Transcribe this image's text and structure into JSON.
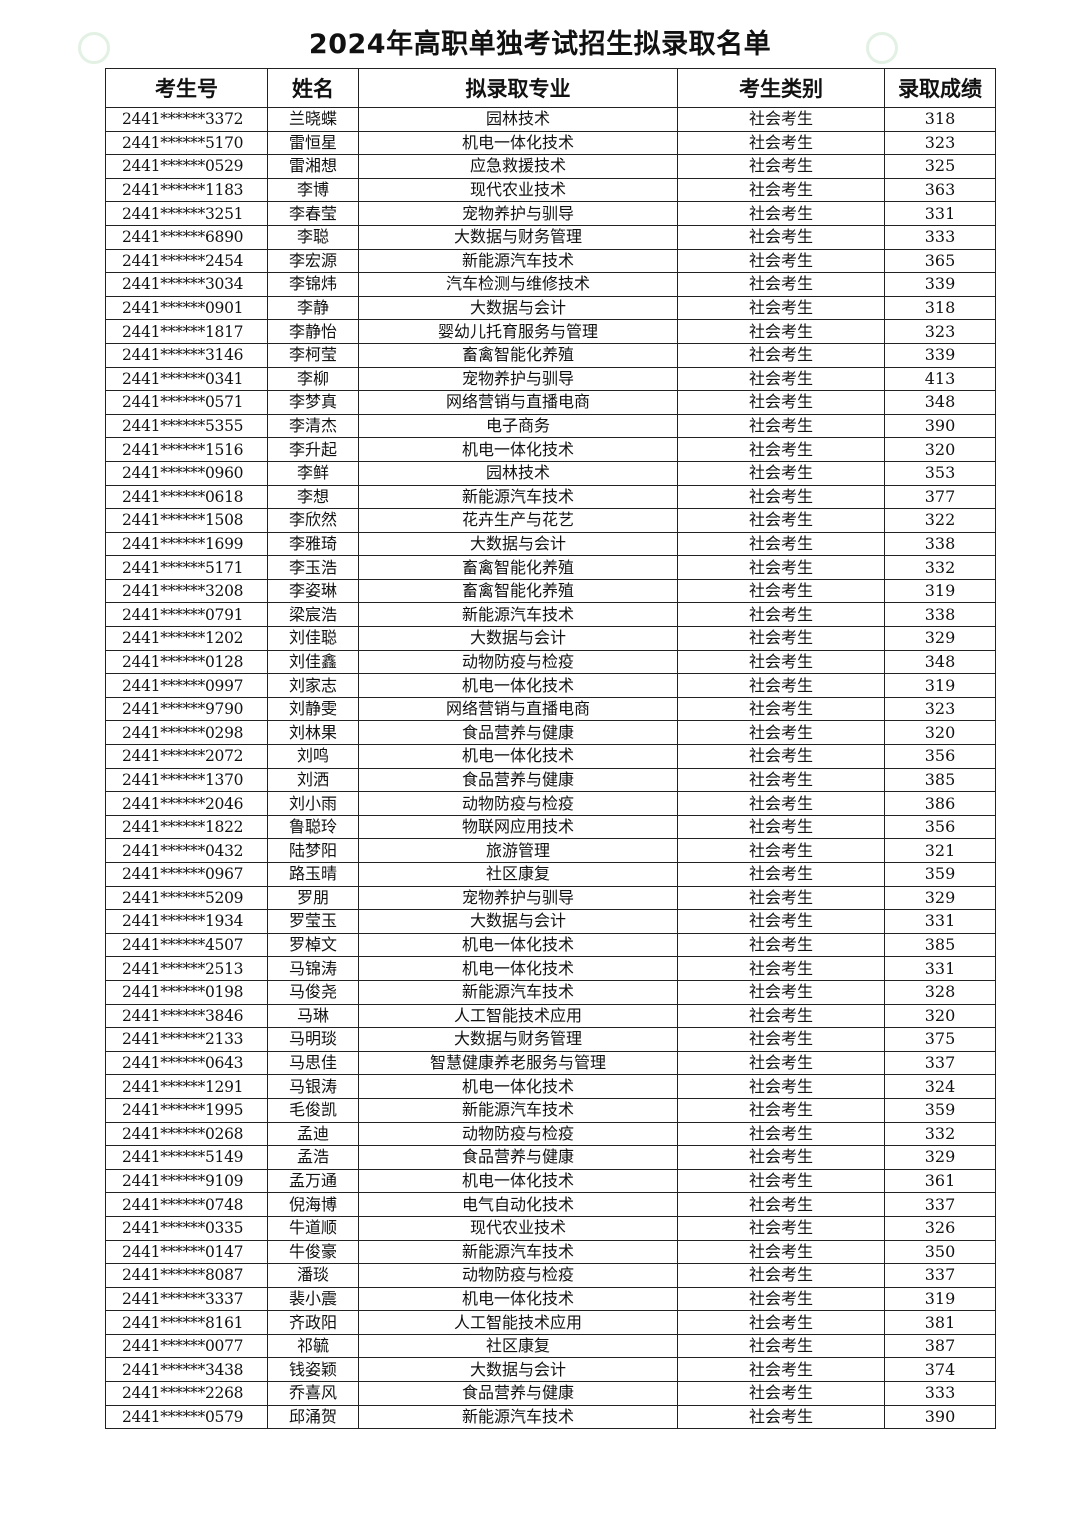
{
  "title": "2024年高职单独考试招生拟录取名单",
  "colors": {
    "border": "#222222",
    "watermark": "#cfe8d2"
  },
  "table": {
    "headers": [
      "考生号",
      "姓名",
      "拟录取专业",
      "考生类别",
      "录取成绩"
    ],
    "rows": [
      [
        "2441******3372",
        "兰晓蝶",
        "园林技术",
        "社会考生",
        "318"
      ],
      [
        "2441******5170",
        "雷恒星",
        "机电一体化技术",
        "社会考生",
        "323"
      ],
      [
        "2441******0529",
        "雷湘想",
        "应急救援技术",
        "社会考生",
        "325"
      ],
      [
        "2441******1183",
        "李博",
        "现代农业技术",
        "社会考生",
        "363"
      ],
      [
        "2441******3251",
        "李春莹",
        "宠物养护与驯导",
        "社会考生",
        "331"
      ],
      [
        "2441******6890",
        "李聪",
        "大数据与财务管理",
        "社会考生",
        "333"
      ],
      [
        "2441******2454",
        "李宏源",
        "新能源汽车技术",
        "社会考生",
        "365"
      ],
      [
        "2441******3034",
        "李锦炜",
        "汽车检测与维修技术",
        "社会考生",
        "339"
      ],
      [
        "2441******0901",
        "李静",
        "大数据与会计",
        "社会考生",
        "318"
      ],
      [
        "2441******1817",
        "李静怡",
        "婴幼儿托育服务与管理",
        "社会考生",
        "323"
      ],
      [
        "2441******3146",
        "李柯莹",
        "畜禽智能化养殖",
        "社会考生",
        "339"
      ],
      [
        "2441******0341",
        "李柳",
        "宠物养护与驯导",
        "社会考生",
        "413"
      ],
      [
        "2441******0571",
        "李梦真",
        "网络营销与直播电商",
        "社会考生",
        "348"
      ],
      [
        "2441******5355",
        "李清杰",
        "电子商务",
        "社会考生",
        "390"
      ],
      [
        "2441******1516",
        "李升起",
        "机电一体化技术",
        "社会考生",
        "320"
      ],
      [
        "2441******0960",
        "李鲜",
        "园林技术",
        "社会考生",
        "353"
      ],
      [
        "2441******0618",
        "李想",
        "新能源汽车技术",
        "社会考生",
        "377"
      ],
      [
        "2441******1508",
        "李欣然",
        "花卉生产与花艺",
        "社会考生",
        "322"
      ],
      [
        "2441******1699",
        "李雅琦",
        "大数据与会计",
        "社会考生",
        "338"
      ],
      [
        "2441******5171",
        "李玉浩",
        "畜禽智能化养殖",
        "社会考生",
        "332"
      ],
      [
        "2441******3208",
        "李姿琳",
        "畜禽智能化养殖",
        "社会考生",
        "319"
      ],
      [
        "2441******0791",
        "梁宸浩",
        "新能源汽车技术",
        "社会考生",
        "338"
      ],
      [
        "2441******1202",
        "刘佳聪",
        "大数据与会计",
        "社会考生",
        "329"
      ],
      [
        "2441******0128",
        "刘佳鑫",
        "动物防疫与检疫",
        "社会考生",
        "348"
      ],
      [
        "2441******0997",
        "刘家志",
        "机电一体化技术",
        "社会考生",
        "319"
      ],
      [
        "2441******9790",
        "刘静雯",
        "网络营销与直播电商",
        "社会考生",
        "323"
      ],
      [
        "2441******0298",
        "刘林果",
        "食品营养与健康",
        "社会考生",
        "320"
      ],
      [
        "2441******2072",
        "刘鸣",
        "机电一体化技术",
        "社会考生",
        "356"
      ],
      [
        "2441******1370",
        "刘洒",
        "食品营养与健康",
        "社会考生",
        "385"
      ],
      [
        "2441******2046",
        "刘小雨",
        "动物防疫与检疫",
        "社会考生",
        "386"
      ],
      [
        "2441******1822",
        "鲁聪玲",
        "物联网应用技术",
        "社会考生",
        "356"
      ],
      [
        "2441******0432",
        "陆梦阳",
        "旅游管理",
        "社会考生",
        "321"
      ],
      [
        "2441******0967",
        "路玉晴",
        "社区康复",
        "社会考生",
        "359"
      ],
      [
        "2441******5209",
        "罗朋",
        "宠物养护与驯导",
        "社会考生",
        "329"
      ],
      [
        "2441******1934",
        "罗莹玉",
        "大数据与会计",
        "社会考生",
        "331"
      ],
      [
        "2441******4507",
        "罗棹文",
        "机电一体化技术",
        "社会考生",
        "385"
      ],
      [
        "2441******2513",
        "马锦涛",
        "机电一体化技术",
        "社会考生",
        "331"
      ],
      [
        "2441******0198",
        "马俊尧",
        "新能源汽车技术",
        "社会考生",
        "328"
      ],
      [
        "2441******3846",
        "马琳",
        "人工智能技术应用",
        "社会考生",
        "320"
      ],
      [
        "2441******2133",
        "马明琰",
        "大数据与财务管理",
        "社会考生",
        "375"
      ],
      [
        "2441******0643",
        "马思佳",
        "智慧健康养老服务与管理",
        "社会考生",
        "337"
      ],
      [
        "2441******1291",
        "马银涛",
        "机电一体化技术",
        "社会考生",
        "324"
      ],
      [
        "2441******1995",
        "毛俊凯",
        "新能源汽车技术",
        "社会考生",
        "359"
      ],
      [
        "2441******0268",
        "孟迪",
        "动物防疫与检疫",
        "社会考生",
        "332"
      ],
      [
        "2441******5149",
        "孟浩",
        "食品营养与健康",
        "社会考生",
        "329"
      ],
      [
        "2441******9109",
        "孟万通",
        "机电一体化技术",
        "社会考生",
        "361"
      ],
      [
        "2441******0748",
        "倪海博",
        "电气自动化技术",
        "社会考生",
        "337"
      ],
      [
        "2441******0335",
        "牛道顺",
        "现代农业技术",
        "社会考生",
        "326"
      ],
      [
        "2441******0147",
        "牛俊豪",
        "新能源汽车技术",
        "社会考生",
        "350"
      ],
      [
        "2441******8087",
        "潘琰",
        "动物防疫与检疫",
        "社会考生",
        "337"
      ],
      [
        "2441******3337",
        "裴小震",
        "机电一体化技术",
        "社会考生",
        "319"
      ],
      [
        "2441******8161",
        "齐政阳",
        "人工智能技术应用",
        "社会考生",
        "381"
      ],
      [
        "2441******0077",
        "祁毓",
        "社区康复",
        "社会考生",
        "387"
      ],
      [
        "2441******3438",
        "钱姿颖",
        "大数据与会计",
        "社会考生",
        "374"
      ],
      [
        "2441******2268",
        "乔喜风",
        "食品营养与健康",
        "社会考生",
        "333"
      ],
      [
        "2441******0579",
        "邱涌贺",
        "新能源汽车技术",
        "社会考生",
        "390"
      ]
    ]
  }
}
